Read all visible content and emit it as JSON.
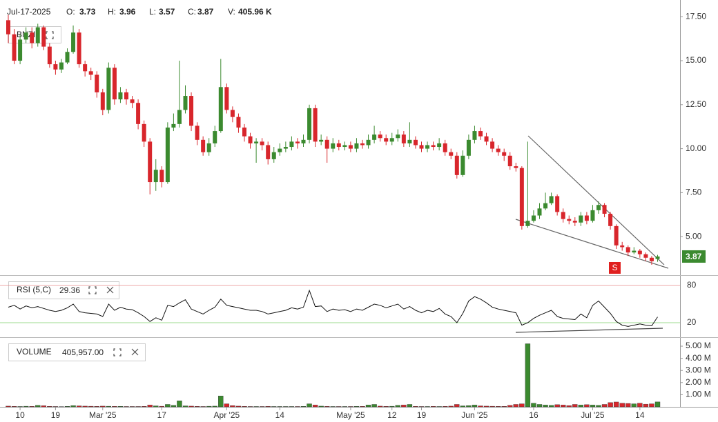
{
  "chart_data": {
    "type": "candlestick",
    "symbol": "BNZI",
    "date": "Jul-17-2025",
    "header_labels": [
      "O:",
      "H:",
      "L:",
      "C:",
      "V:"
    ],
    "header_volume": "405.96 K",
    "signal": "S",
    "up_color": "#3b8a2f",
    "down_color": "#d8262c",
    "categories": [
      null,
      null,
      "10",
      null,
      null,
      null,
      null,
      null,
      "19",
      null,
      null,
      null,
      null,
      null,
      null,
      null,
      "Mar '25",
      null,
      null,
      null,
      null,
      null,
      null,
      null,
      null,
      null,
      "17",
      null,
      null,
      null,
      null,
      null,
      null,
      null,
      null,
      null,
      null,
      "Apr '25",
      null,
      null,
      null,
      null,
      null,
      null,
      null,
      null,
      "14",
      null,
      null,
      null,
      null,
      null,
      null,
      null,
      null,
      null,
      null,
      null,
      "May '25",
      null,
      null,
      null,
      null,
      null,
      null,
      "12",
      null,
      null,
      null,
      null,
      "19",
      null,
      null,
      null,
      null,
      null,
      null,
      null,
      null,
      "Jun '25",
      null,
      null,
      null,
      null,
      null,
      null,
      null,
      null,
      null,
      "16",
      null,
      null,
      null,
      null,
      null,
      null,
      null,
      null,
      null,
      "Jul '25",
      null,
      null,
      null,
      null,
      null,
      null,
      null,
      "14",
      null,
      null,
      null
    ],
    "open": [
      17.3,
      16.5,
      15.0,
      16.2,
      16.6,
      16.0,
      16.9,
      15.8,
      14.8,
      14.5,
      14.9,
      15.5,
      16.6,
      14.8,
      14.4,
      14.2,
      13.2,
      12.2,
      14.6,
      12.8,
      13.2,
      12.8,
      12.6,
      11.4,
      10.4,
      8.1,
      8.8,
      8.1,
      11.2,
      11.4,
      12.2,
      13.0,
      11.3,
      10.5,
      9.8,
      10.3,
      11.0,
      13.5,
      12.2,
      11.8,
      11.2,
      10.7,
      10.3,
      10.4,
      10.2,
      9.4,
      9.8,
      10.0,
      10.1,
      10.4,
      10.3,
      10.5,
      12.3,
      10.4,
      10.5,
      10.0,
      10.3,
      10.1,
      10.2,
      10.0,
      10.3,
      10.2,
      10.5,
      10.8,
      10.6,
      10.4,
      10.6,
      10.8,
      10.3,
      10.5,
      10.2,
      10.0,
      10.2,
      10.1,
      10.3,
      9.8,
      9.6,
      8.5,
      9.6,
      10.5,
      11.0,
      10.7,
      10.4,
      10.0,
      9.8,
      9.6,
      9.0,
      8.9,
      5.6,
      5.9,
      6.2,
      6.6,
      6.9,
      7.3,
      6.4,
      6.0,
      5.9,
      5.8,
      6.2,
      5.9,
      6.5,
      6.8,
      6.3,
      5.6,
      4.5,
      4.4,
      4.1,
      4.2,
      4.0,
      3.8,
      3.73
    ],
    "high": [
      17.6,
      16.8,
      16.5,
      16.9,
      16.9,
      17.1,
      17.0,
      16.0,
      15.0,
      15.1,
      15.7,
      17.0,
      16.8,
      15.0,
      14.6,
      14.4,
      13.4,
      14.9,
      14.8,
      13.5,
      13.4,
      13.0,
      12.8,
      11.6,
      10.6,
      9.4,
      9.0,
      11.5,
      12.0,
      15.0,
      13.6,
      13.2,
      11.5,
      10.7,
      10.6,
      11.3,
      15.1,
      13.7,
      12.4,
      12.0,
      11.4,
      10.9,
      10.6,
      10.6,
      10.4,
      10.1,
      10.3,
      10.4,
      10.7,
      10.6,
      10.8,
      12.5,
      12.5,
      10.8,
      10.7,
      10.6,
      10.5,
      10.4,
      10.4,
      10.6,
      10.5,
      10.8,
      11.3,
      11.0,
      10.8,
      10.9,
      11.1,
      11.0,
      11.5,
      10.7,
      10.4,
      10.4,
      10.4,
      10.6,
      10.5,
      10.0,
      9.8,
      9.9,
      10.8,
      11.3,
      11.2,
      10.9,
      10.6,
      10.2,
      10.0,
      9.8,
      9.2,
      9.0,
      10.4,
      6.5,
      6.9,
      7.5,
      7.5,
      7.4,
      6.6,
      6.2,
      6.1,
      6.4,
      6.4,
      6.8,
      7.0,
      6.9,
      6.4,
      5.7,
      4.7,
      4.5,
      4.4,
      4.3,
      4.1,
      3.9,
      3.96
    ],
    "low": [
      16.0,
      14.8,
      14.8,
      16.0,
      15.7,
      15.8,
      15.6,
      14.6,
      14.2,
      14.3,
      14.8,
      15.4,
      14.6,
      14.1,
      13.9,
      12.9,
      11.9,
      12.0,
      12.5,
      12.6,
      12.5,
      12.3,
      11.1,
      10.1,
      7.4,
      7.6,
      7.8,
      8.0,
      11.0,
      11.2,
      12.0,
      11.0,
      10.2,
      9.6,
      9.6,
      10.1,
      10.9,
      12.0,
      11.5,
      10.9,
      10.4,
      10.0,
      9.2,
      9.9,
      9.1,
      9.2,
      9.6,
      9.8,
      9.9,
      10.0,
      10.1,
      10.3,
      10.1,
      10.2,
      9.2,
      9.8,
      9.9,
      9.9,
      9.8,
      9.8,
      10.0,
      10.0,
      10.3,
      10.4,
      10.2,
      10.2,
      10.4,
      10.1,
      10.1,
      10.0,
      9.8,
      9.8,
      9.9,
      9.9,
      9.6,
      9.4,
      8.3,
      8.4,
      9.4,
      10.3,
      10.5,
      10.2,
      9.8,
      9.6,
      9.3,
      8.8,
      8.7,
      5.4,
      5.5,
      5.8,
      6.0,
      6.5,
      6.8,
      6.2,
      5.8,
      5.7,
      5.6,
      5.6,
      5.7,
      5.8,
      6.3,
      6.1,
      5.4,
      4.3,
      4.2,
      3.9,
      4.0,
      3.8,
      3.6,
      3.4,
      3.57
    ],
    "close": [
      16.5,
      15.0,
      16.2,
      16.6,
      16.0,
      16.9,
      15.8,
      14.8,
      14.5,
      14.9,
      15.5,
      16.6,
      14.8,
      14.4,
      14.2,
      13.2,
      12.2,
      14.6,
      12.8,
      13.2,
      12.8,
      12.6,
      11.4,
      10.4,
      8.1,
      8.8,
      8.1,
      11.2,
      11.4,
      12.2,
      13.0,
      11.3,
      10.5,
      9.8,
      10.3,
      11.0,
      13.5,
      12.2,
      11.8,
      11.2,
      10.7,
      10.3,
      10.4,
      10.2,
      9.4,
      9.8,
      10.0,
      10.1,
      10.4,
      10.3,
      10.5,
      12.3,
      10.4,
      10.5,
      10.0,
      10.3,
      10.1,
      10.2,
      10.0,
      10.3,
      10.2,
      10.5,
      10.8,
      10.6,
      10.4,
      10.6,
      10.8,
      10.3,
      10.5,
      10.2,
      10.0,
      10.2,
      10.1,
      10.3,
      9.8,
      9.6,
      8.5,
      9.6,
      10.5,
      11.0,
      10.7,
      10.4,
      10.0,
      9.8,
      9.6,
      9.0,
      8.9,
      5.6,
      5.9,
      6.2,
      6.6,
      6.9,
      7.3,
      6.4,
      6.0,
      5.9,
      5.8,
      6.2,
      5.9,
      6.5,
      6.8,
      6.3,
      5.6,
      4.5,
      4.4,
      4.1,
      4.2,
      4.0,
      3.8,
      3.6,
      3.87
    ],
    "ylim": [
      2.85,
      18.45
    ],
    "yticks": [
      {
        "value": 5,
        "label": "5.00"
      },
      {
        "value": 7.5,
        "label": "7.50"
      },
      {
        "value": 10,
        "label": "10.00"
      },
      {
        "value": 12.5,
        "label": "12.50"
      },
      {
        "value": 15,
        "label": "15.00"
      },
      {
        "value": 17.5,
        "label": "17.50"
      }
    ],
    "rsi": {
      "name": "RSI (5,C)",
      "color": "#111111",
      "values": [
        45,
        48,
        42,
        47,
        44,
        46,
        43,
        40,
        38,
        40,
        44,
        50,
        38,
        36,
        35,
        34,
        30,
        50,
        40,
        45,
        42,
        41,
        36,
        30,
        22,
        28,
        24,
        48,
        46,
        52,
        57,
        42,
        38,
        34,
        40,
        45,
        58,
        48,
        46,
        44,
        42,
        40,
        40,
        38,
        34,
        36,
        38,
        40,
        44,
        42,
        45,
        72,
        46,
        47,
        38,
        42,
        40,
        41,
        38,
        42,
        40,
        45,
        50,
        48,
        44,
        47,
        50,
        42,
        46,
        40,
        36,
        40,
        38,
        43,
        34,
        30,
        20,
        35,
        55,
        62,
        58,
        52,
        45,
        42,
        40,
        38,
        36,
        16,
        20,
        27,
        32,
        36,
        40,
        30,
        27,
        26,
        25,
        34,
        28,
        48,
        55,
        45,
        35,
        22,
        16,
        14,
        16,
        18,
        16,
        15,
        29.36
      ],
      "ylim": [
        -2.2,
        93.3
      ],
      "yticks": [
        20,
        80
      ],
      "tick_colors": [
        "#7ccf6a",
        "#e88a8a"
      ]
    },
    "volume": {
      "name": "VOLUME",
      "last_label": "405,957.00",
      "values": [
        60000,
        40000,
        30000,
        50000,
        40000,
        120000,
        90000,
        40000,
        30000,
        20000,
        40000,
        100000,
        80000,
        60000,
        50000,
        40000,
        60000,
        50000,
        40000,
        40000,
        30000,
        30000,
        30000,
        40000,
        150000,
        80000,
        50000,
        200000,
        120000,
        500000,
        80000,
        60000,
        40000,
        30000,
        50000,
        60000,
        900000,
        250000,
        100000,
        60000,
        40000,
        30000,
        30000,
        30000,
        40000,
        30000,
        30000,
        30000,
        30000,
        30000,
        40000,
        250000,
        150000,
        60000,
        40000,
        30000,
        30000,
        30000,
        30000,
        40000,
        40000,
        150000,
        200000,
        60000,
        40000,
        50000,
        120000,
        150000,
        200000,
        40000,
        30000,
        30000,
        40000,
        30000,
        40000,
        60000,
        200000,
        80000,
        100000,
        150000,
        80000,
        60000,
        50000,
        40000,
        40000,
        120000,
        200000,
        250000,
        5200000,
        300000,
        200000,
        150000,
        120000,
        180000,
        150000,
        100000,
        200000,
        150000,
        180000,
        150000,
        120000,
        200000,
        350000,
        400000,
        300000,
        280000,
        250000,
        300000,
        220000,
        250000,
        405957
      ],
      "ylim": [
        0,
        5570000
      ],
      "yticks": [
        {
          "value": 1000000,
          "label": "1.00 M"
        },
        {
          "value": 2000000,
          "label": "2.00 M"
        },
        {
          "value": 3000000,
          "label": "3.00 M"
        },
        {
          "value": 4000000,
          "label": "4.00 M"
        },
        {
          "value": 5000000,
          "label": "5.00 M"
        }
      ]
    }
  }
}
